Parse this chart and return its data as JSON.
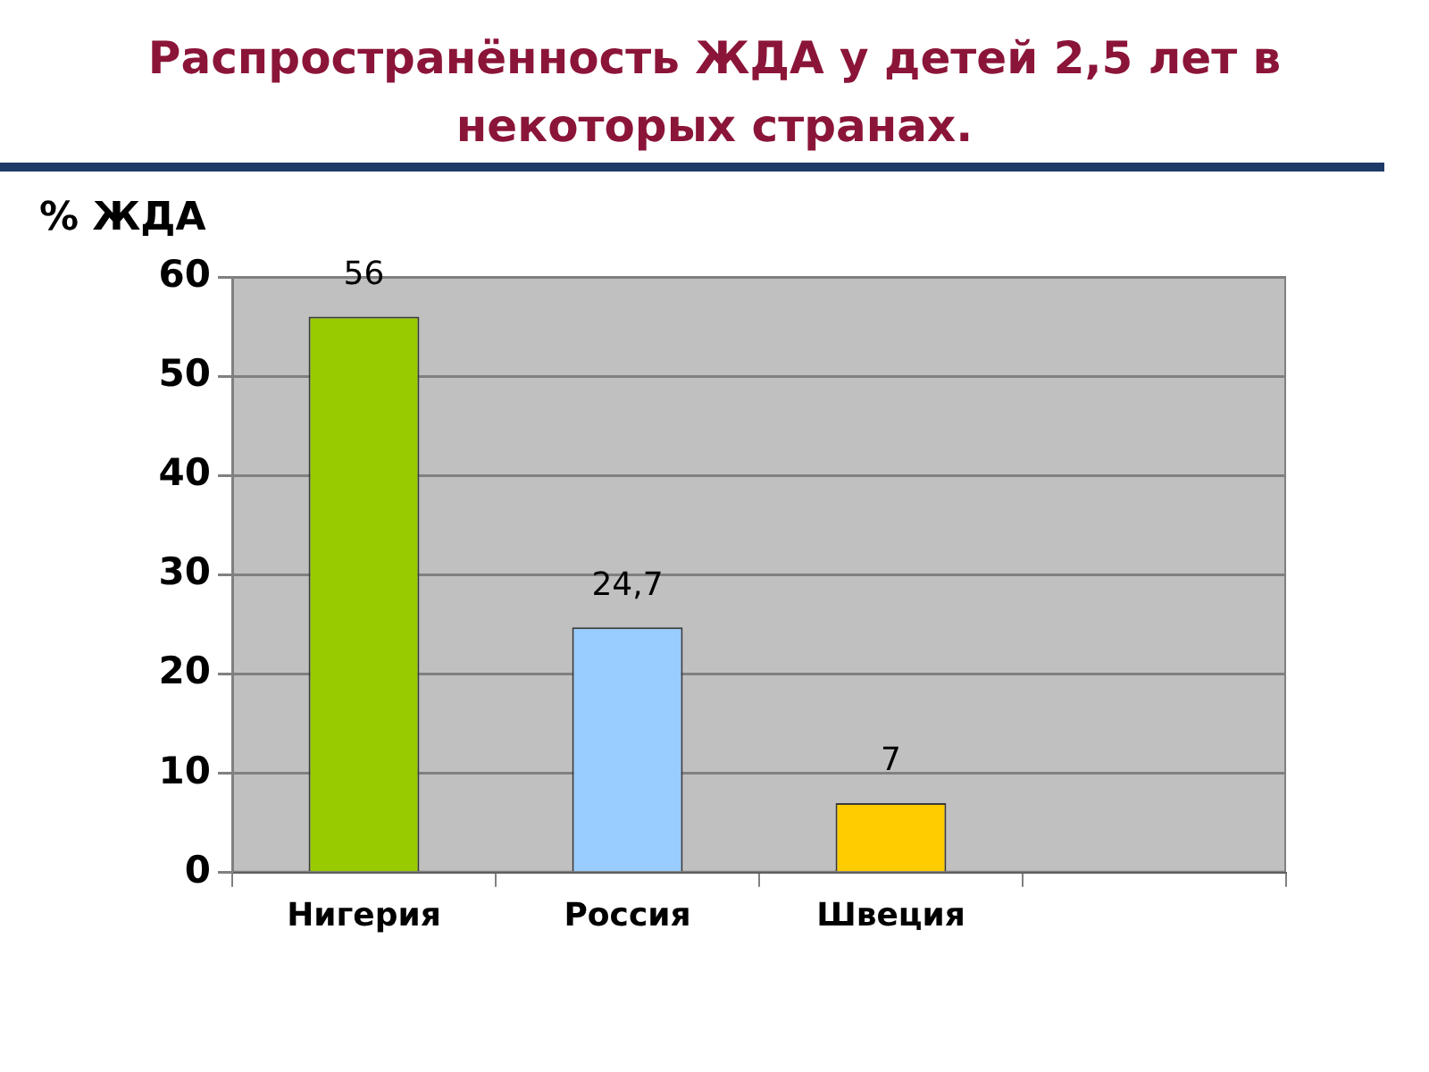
{
  "chart_data": {
    "type": "bar",
    "title": "Распространённость ЖДА у детей 2,5 лет в некоторых странах.",
    "ylabel": "% ЖДА",
    "categories": [
      "Нигерия",
      "Россия",
      "Швеция",
      null
    ],
    "values": [
      56,
      24.7,
      7,
      null
    ],
    "colors": [
      "#99cc00",
      "#99ccff",
      "#ffcc00",
      null
    ],
    "value_labels": [
      "56",
      "24,7",
      "7",
      null
    ],
    "ylim": [
      0,
      60
    ],
    "yticks": [
      0,
      10,
      20,
      30,
      40,
      50,
      60
    ],
    "grid": "y",
    "legend": false
  }
}
